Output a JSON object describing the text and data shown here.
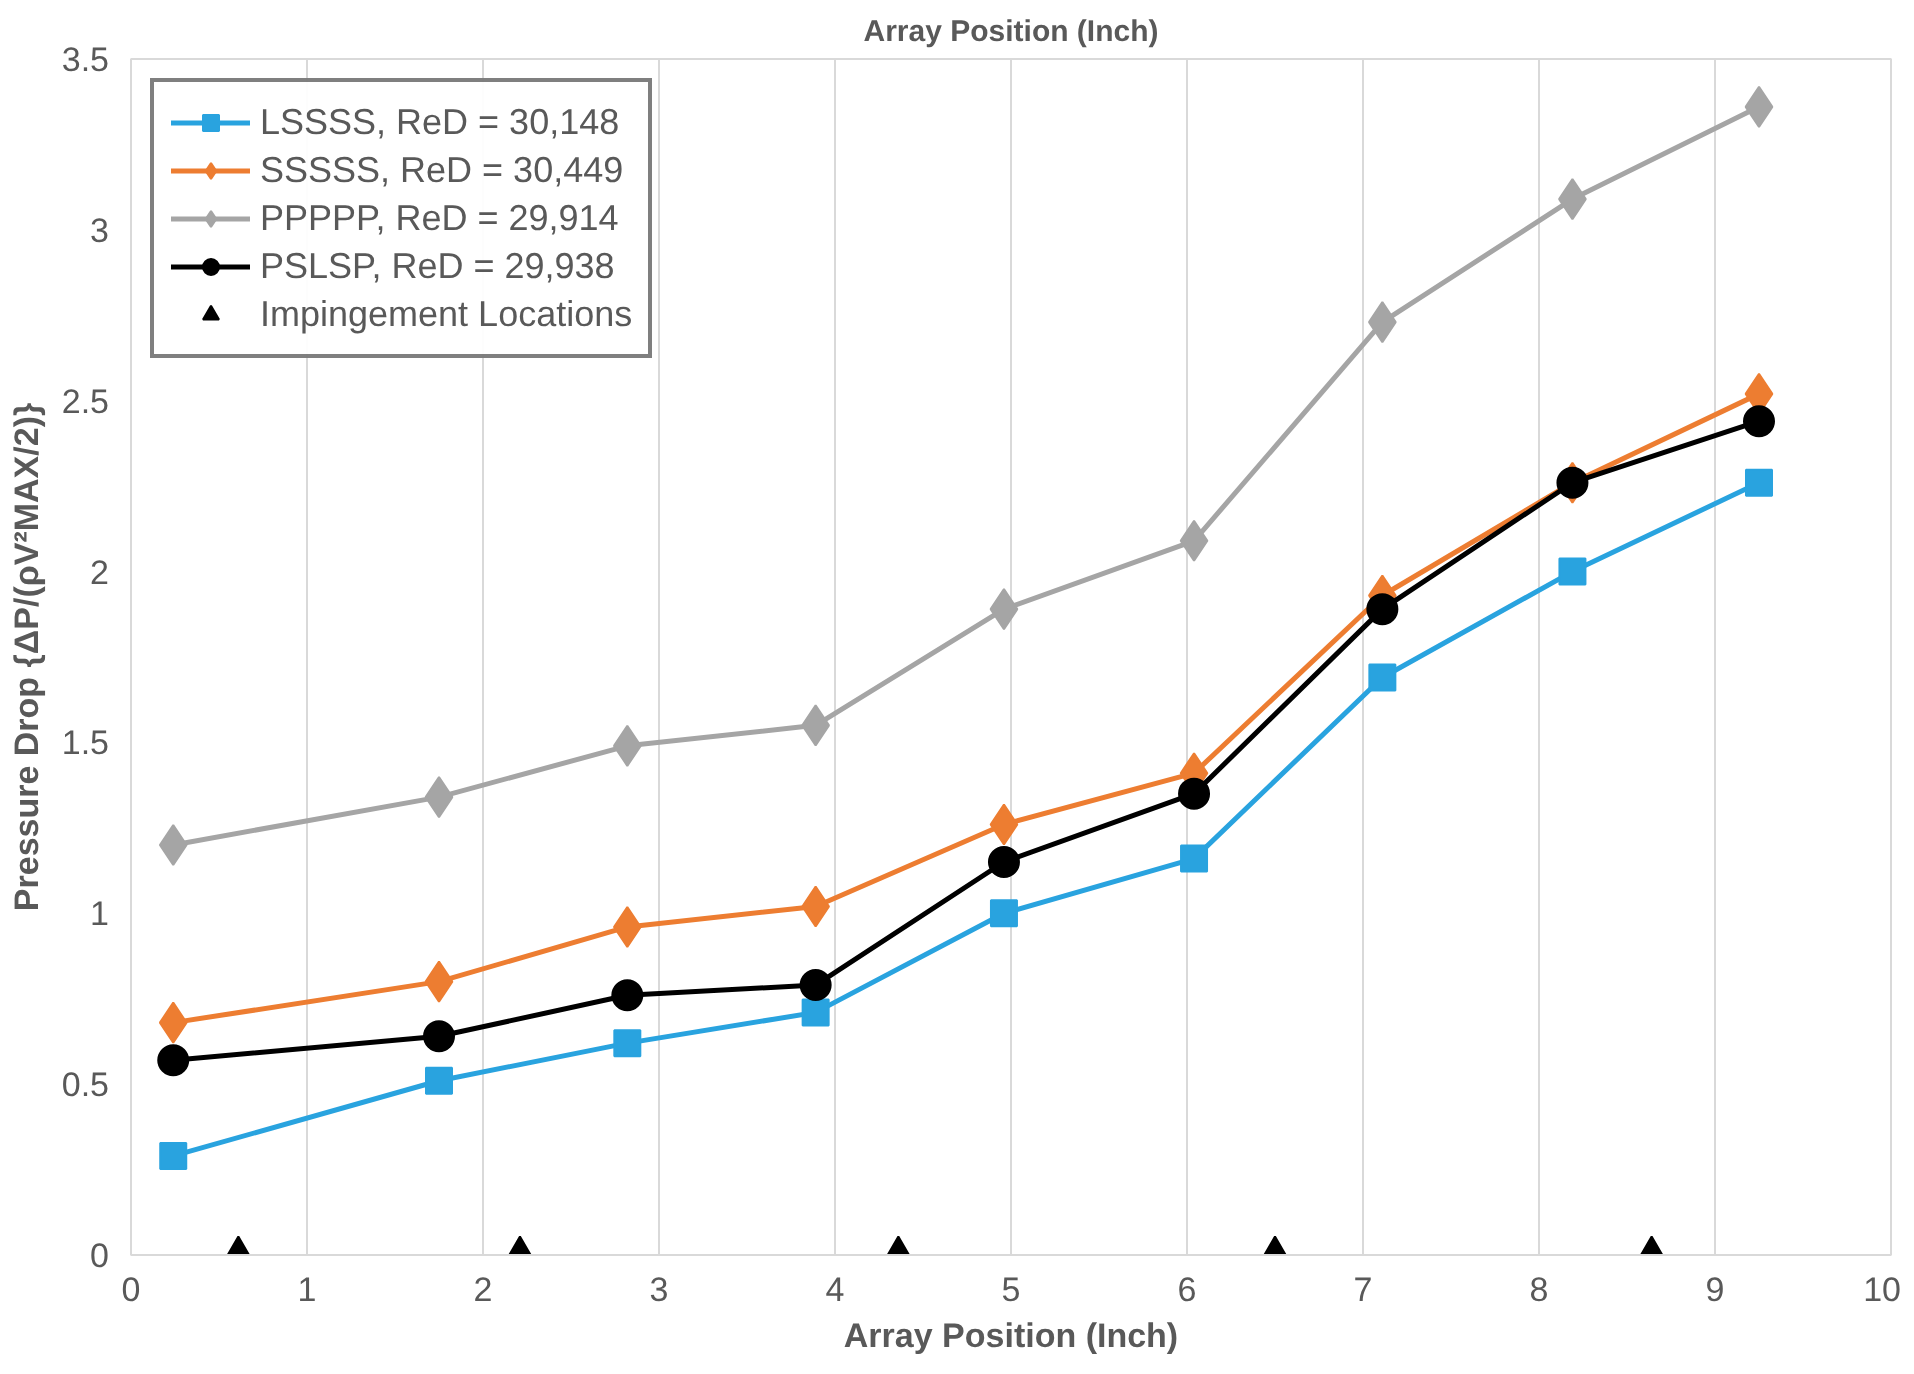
{
  "chart_data": {
    "type": "line",
    "title": "Array Position (Inch)",
    "xlabel": "Array Position (Inch)",
    "ylabel": "Pressure Drop {ΔP/(ρV²MAX/2)}",
    "xlim": [
      0,
      10
    ],
    "xticks": [
      0,
      1,
      2,
      3,
      4,
      5,
      6,
      7,
      8,
      9,
      10
    ],
    "ylim": [
      0,
      3.5
    ],
    "yticks": [
      0,
      0.5,
      1,
      1.5,
      2,
      2.5,
      3,
      3.5
    ],
    "grid": "x",
    "legend": "top left",
    "series": [
      {
        "name": "LSSSS, ReD = 30,148",
        "color": "#29a3df",
        "marker": "square",
        "x": [
          0.24,
          1.75,
          2.82,
          3.89,
          4.96,
          6.04,
          7.11,
          8.19,
          9.25
        ],
        "values": [
          0.29,
          0.51,
          0.62,
          0.71,
          1.0,
          1.16,
          1.69,
          2.0,
          2.26
        ]
      },
      {
        "name": "SSSSS, ReD = 30,449",
        "color": "#ed7d31",
        "marker": "diamond",
        "x": [
          0.24,
          1.75,
          2.82,
          3.89,
          4.96,
          6.04,
          7.11,
          8.19,
          9.25
        ],
        "values": [
          0.68,
          0.8,
          0.96,
          1.02,
          1.26,
          1.41,
          1.93,
          2.26,
          2.52
        ]
      },
      {
        "name": "PPPPP, ReD = 29,914",
        "color": "#a5a5a5",
        "marker": "diamond",
        "x": [
          0.24,
          1.75,
          2.82,
          3.89,
          4.96,
          6.04,
          7.11,
          8.19,
          9.25
        ],
        "values": [
          1.2,
          1.34,
          1.49,
          1.55,
          1.89,
          2.09,
          2.73,
          3.09,
          3.36
        ]
      },
      {
        "name": "PSLSP, ReD = 29,938",
        "color": "#000000",
        "marker": "circle",
        "x": [
          0.24,
          1.75,
          2.82,
          3.89,
          4.96,
          6.04,
          7.11,
          8.19,
          9.25
        ],
        "values": [
          0.57,
          0.64,
          0.76,
          0.79,
          1.15,
          1.35,
          1.89,
          2.26,
          2.44
        ]
      },
      {
        "name": "Impingement Locations",
        "type": "scatter",
        "color": "#000000",
        "marker": "triangle",
        "x": [
          0.61,
          2.21,
          4.36,
          6.5,
          8.64
        ],
        "values": [
          0,
          0,
          0,
          0,
          0
        ]
      }
    ]
  }
}
